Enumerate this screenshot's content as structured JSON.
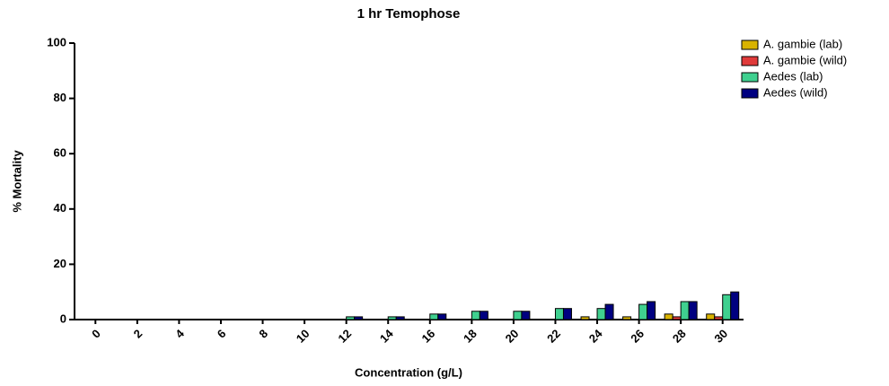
{
  "chart_data": {
    "type": "bar",
    "title": "1 hr Temophose",
    "x_label": "Concentration (g/L)",
    "y_label": "% Mortality",
    "categories": [
      "0",
      "2",
      "4",
      "6",
      "8",
      "10",
      "12",
      "14",
      "16",
      "18",
      "20",
      "22",
      "24",
      "26",
      "28",
      "30"
    ],
    "series": [
      {
        "name": "A. gambie (lab)",
        "color": "#d9b300",
        "values": [
          0,
          0,
          0,
          0,
          0,
          0,
          0,
          0,
          0,
          0,
          0,
          0,
          1,
          1,
          2,
          2
        ]
      },
      {
        "name": "A. gambie (wild)",
        "color": "#e03a3a",
        "values": [
          0,
          0,
          0,
          0,
          0,
          0,
          0,
          0,
          0,
          0,
          0,
          0,
          0,
          0,
          1,
          1
        ]
      },
      {
        "name": "Aedes (lab)",
        "color": "#3fd08f",
        "values": [
          0,
          0,
          0,
          0,
          0,
          0,
          1,
          1,
          2,
          3,
          3,
          4,
          4,
          5.5,
          6.5,
          9
        ]
      },
      {
        "name": "Aedes (wild)",
        "color": "#000080",
        "values": [
          0,
          0,
          0,
          0,
          0,
          0,
          1,
          1,
          2,
          3,
          3,
          4,
          5.5,
          6.5,
          6.5,
          10
        ]
      }
    ],
    "ylim": [
      0,
      100
    ],
    "yticks": [
      0,
      20,
      40,
      60,
      80,
      100
    ],
    "grid": false,
    "legend": "top-right"
  }
}
